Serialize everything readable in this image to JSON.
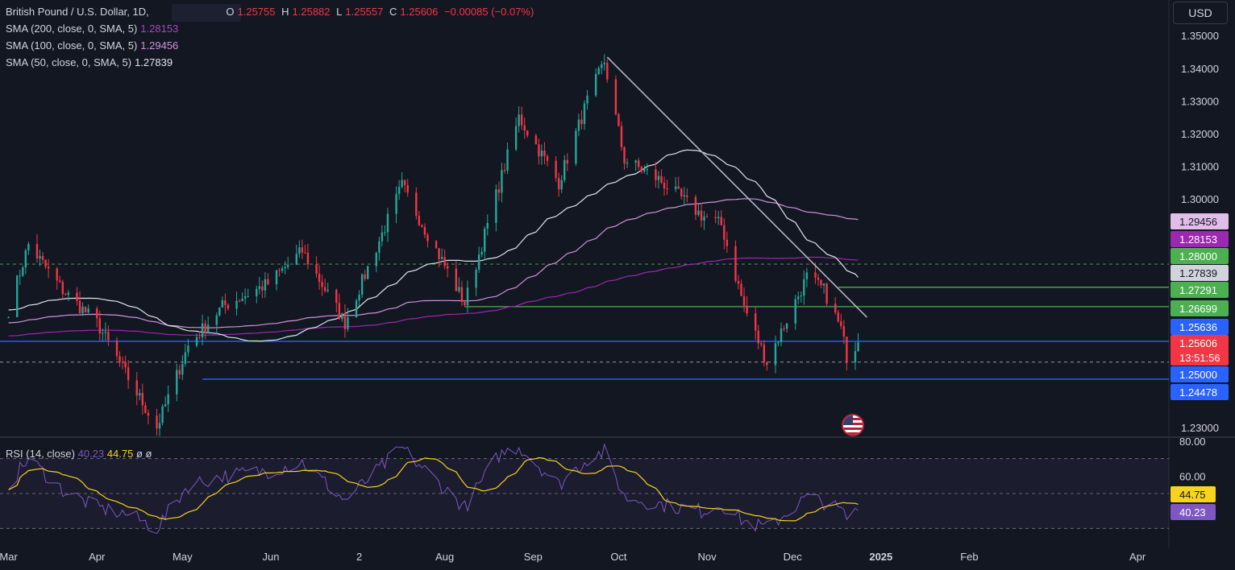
{
  "header": {
    "symbol": "British Pound / U.S. Dollar, 1D,",
    "ohlc": [
      {
        "k": "O",
        "v": "1.25755"
      },
      {
        "k": "H",
        "v": "1.25882"
      },
      {
        "k": "L",
        "v": "1.25557"
      },
      {
        "k": "C",
        "v": "1.25606"
      }
    ],
    "change": "−0.00085 (−0.07%)",
    "currency": "USD"
  },
  "indicators": [
    {
      "label": "SMA (200, close, 0, SMA, 5)",
      "value": "1.28153",
      "color": "#ab47bc"
    },
    {
      "label": "SMA (100, close, 0, SMA, 5)",
      "value": "1.29456",
      "color": "#ce93d8"
    },
    {
      "label": "SMA (50, close, 0, SMA, 5)",
      "value": "1.27839",
      "color": "#e0e3eb"
    }
  ],
  "rsi": {
    "label": "RSI (14, close)",
    "value": "40.23",
    "ma_value": "44.75",
    "extra1": "ø",
    "extra2": "ø"
  },
  "colors": {
    "up": "#26a69a",
    "down": "#f23645",
    "bg": "#131722",
    "grid": "#363a45",
    "rsi_line": "#7e57c2",
    "rsi_ma": "#f7d21e",
    "trend": "#9598a1",
    "support_green": "#4caf50",
    "support_blue": "#2962ff"
  },
  "chart_data": {
    "type": "candlestick",
    "x_ticks": [
      "Mar",
      "Apr",
      "May",
      "Jun",
      "2",
      "Aug",
      "Sep",
      "Oct",
      "Nov",
      "Dec",
      "2025",
      "Feb",
      "Apr"
    ],
    "y_ticks": [
      "1.35000",
      "1.34000",
      "1.33000",
      "1.32000",
      "1.31000",
      "1.30000",
      "1.23000"
    ],
    "ylim": [
      1.2275,
      1.3535
    ],
    "price_labels": [
      {
        "text": "1.29456",
        "bg": "#e1bee7",
        "fg": "#131722"
      },
      {
        "text": "1.28153",
        "bg": "#9c27b0",
        "fg": "#ffffff"
      },
      {
        "text": "1.28000",
        "bg": "#4caf50",
        "fg": "#ffffff"
      },
      {
        "text": "1.27839",
        "bg": "#d1d4dc",
        "fg": "#131722"
      },
      {
        "text": "1.27291",
        "bg": "#4caf50",
        "fg": "#ffffff"
      },
      {
        "text": "1.26699",
        "bg": "#4caf50",
        "fg": "#ffffff"
      },
      {
        "text": "1.25636",
        "bg": "#2962ff",
        "fg": "#ffffff"
      },
      {
        "text": "1.25606",
        "bg": "#f23645",
        "fg": "#ffffff"
      },
      {
        "text": "13:51:56",
        "bg": "#f23645",
        "fg": "#ffffff"
      },
      {
        "text": "1.25000",
        "bg": "#2962ff",
        "fg": "#ffffff"
      },
      {
        "text": "1.24478",
        "bg": "#2962ff",
        "fg": "#ffffff"
      }
    ],
    "levels": [
      {
        "price": 1.28,
        "style": "dashed",
        "color": "#4caf50"
      },
      {
        "price": 1.27291,
        "style": "solid",
        "color": "#4caf50",
        "start": "Dec"
      },
      {
        "price": 1.26699,
        "style": "solid",
        "color": "#4caf50",
        "start": "Aug"
      },
      {
        "price": 1.25636,
        "style": "solid",
        "color": "#2962ff"
      },
      {
        "price": 1.25,
        "style": "dashed",
        "color": "#9598a1"
      },
      {
        "price": 1.24478,
        "style": "solid",
        "color": "#2962ff",
        "start": "May"
      }
    ],
    "trendline": [
      [
        "2024-09-27",
        1.3434
      ],
      [
        "2024-12-20",
        1.262
      ]
    ],
    "key_points": [
      [
        "2024-03-01",
        1.266
      ],
      [
        "2024-03-08",
        1.286
      ],
      [
        "2024-03-20",
        1.272
      ],
      [
        "2024-04-01",
        1.262
      ],
      [
        "2024-04-12",
        1.245
      ],
      [
        "2024-04-22",
        1.23
      ],
      [
        "2024-05-03",
        1.255
      ],
      [
        "2024-05-15",
        1.267
      ],
      [
        "2024-05-31",
        1.274
      ],
      [
        "2024-06-12",
        1.284
      ],
      [
        "2024-06-27",
        1.262
      ],
      [
        "2024-07-17",
        1.304
      ],
      [
        "2024-08-08",
        1.268
      ],
      [
        "2024-08-20",
        1.304
      ],
      [
        "2024-08-27",
        1.325
      ],
      [
        "2024-09-10",
        1.305
      ],
      [
        "2024-09-20",
        1.33
      ],
      [
        "2024-09-26",
        1.342
      ],
      [
        "2024-10-03",
        1.312
      ],
      [
        "2024-10-15",
        1.306
      ],
      [
        "2024-10-30",
        1.295
      ],
      [
        "2024-11-06",
        1.292
      ],
      [
        "2024-11-14",
        1.267
      ],
      [
        "2024-11-22",
        1.25
      ],
      [
        "2024-12-06",
        1.276
      ],
      [
        "2024-12-12",
        1.272
      ],
      [
        "2024-12-18",
        1.26
      ],
      [
        "2024-12-20",
        1.252
      ],
      [
        "2024-12-24",
        1.256
      ]
    ],
    "rsi": {
      "ylim": [
        20,
        80
      ],
      "ticks": [
        "80.00",
        "60.00"
      ],
      "bands": [
        70,
        50,
        30
      ],
      "key_points": [
        [
          "2024-03-01",
          55
        ],
        [
          "2024-03-08",
          70
        ],
        [
          "2024-03-20",
          52
        ],
        [
          "2024-04-01",
          42
        ],
        [
          "2024-04-12",
          38
        ],
        [
          "2024-04-22",
          30
        ],
        [
          "2024-05-03",
          55
        ],
        [
          "2024-05-15",
          60
        ],
        [
          "2024-05-31",
          63
        ],
        [
          "2024-06-12",
          68
        ],
        [
          "2024-06-27",
          46
        ],
        [
          "2024-07-17",
          76
        ],
        [
          "2024-08-08",
          42
        ],
        [
          "2024-08-20",
          72
        ],
        [
          "2024-08-27",
          77
        ],
        [
          "2024-09-10",
          55
        ],
        [
          "2024-09-20",
          70
        ],
        [
          "2024-09-26",
          74
        ],
        [
          "2024-10-03",
          48
        ],
        [
          "2024-10-15",
          44
        ],
        [
          "2024-10-30",
          40
        ],
        [
          "2024-11-06",
          44
        ],
        [
          "2024-11-14",
          34
        ],
        [
          "2024-11-22",
          30
        ],
        [
          "2024-12-06",
          48
        ],
        [
          "2024-12-12",
          45
        ],
        [
          "2024-12-18",
          40
        ],
        [
          "2024-12-20",
          36
        ],
        [
          "2024-12-24",
          40.23
        ]
      ]
    }
  }
}
